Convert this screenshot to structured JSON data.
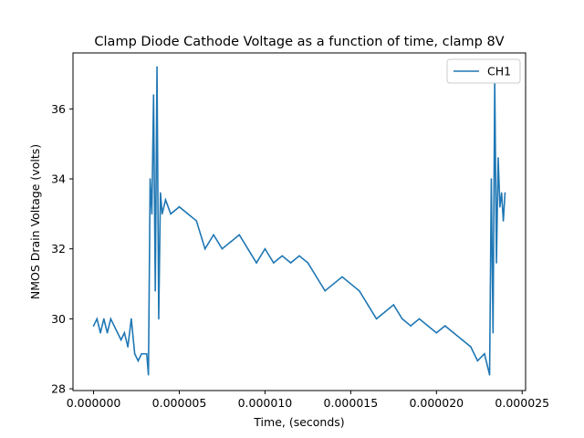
{
  "chart_data": {
    "type": "line",
    "title": "Clamp Diode Cathode Voltage as a function of time, clamp 8V",
    "xlabel": "Time, (seconds)",
    "ylabel": "NMOS Drain Voltage (volts)",
    "xlim": [
      -1.2e-06,
      2.52e-05
    ],
    "ylim": [
      27.95,
      37.6
    ],
    "x_ticks": [
      {
        "value": 0.0,
        "label": "0.000000"
      },
      {
        "value": 5e-06,
        "label": "0.000005"
      },
      {
        "value": 1e-05,
        "label": "0.000010"
      },
      {
        "value": 1.5e-05,
        "label": "0.000015"
      },
      {
        "value": 2e-05,
        "label": "0.000020"
      },
      {
        "value": 2.5e-05,
        "label": "0.000025"
      }
    ],
    "y_ticks": [
      {
        "value": 28,
        "label": "28"
      },
      {
        "value": 30,
        "label": "30"
      },
      {
        "value": 32,
        "label": "32"
      },
      {
        "value": 34,
        "label": "34"
      },
      {
        "value": 36,
        "label": "36"
      }
    ],
    "grid": false,
    "legend": {
      "position": "top-right"
    },
    "series": [
      {
        "name": "CH1",
        "color": "#1f77b4",
        "x": [
          0.0,
          2e-07,
          4e-07,
          6e-07,
          8e-07,
          1e-06,
          1.2e-06,
          1.4e-06,
          1.6e-06,
          1.8e-06,
          2e-06,
          2.2e-06,
          2.4e-06,
          2.6e-06,
          2.8e-06,
          3e-06,
          3.1e-06,
          3.2e-06,
          3.3e-06,
          3.4e-06,
          3.5e-06,
          3.6e-06,
          3.7e-06,
          3.8e-06,
          3.9e-06,
          4e-06,
          4.2e-06,
          4.5e-06,
          5e-06,
          5.5e-06,
          6e-06,
          6.5e-06,
          7e-06,
          7.5e-06,
          8e-06,
          8.5e-06,
          9e-06,
          9.5e-06,
          1e-05,
          1.05e-05,
          1.1e-05,
          1.15e-05,
          1.2e-05,
          1.25e-05,
          1.3e-05,
          1.35e-05,
          1.4e-05,
          1.45e-05,
          1.5e-05,
          1.55e-05,
          1.6e-05,
          1.65e-05,
          1.7e-05,
          1.75e-05,
          1.8e-05,
          1.85e-05,
          1.9e-05,
          1.95e-05,
          2e-05,
          2.05e-05,
          2.1e-05,
          2.15e-05,
          2.2e-05,
          2.24e-05,
          2.28e-05,
          2.31e-05,
          2.32e-05,
          2.33e-05,
          2.34e-05,
          2.35e-05,
          2.36e-05,
          2.37e-05,
          2.38e-05,
          2.39e-05,
          2.4e-05
        ],
        "y": [
          29.8,
          30.0,
          29.6,
          30.0,
          29.6,
          30.0,
          29.8,
          29.6,
          29.4,
          29.6,
          29.2,
          30.0,
          29.0,
          28.8,
          29.0,
          29.0,
          29.0,
          28.4,
          34.0,
          33.0,
          36.4,
          30.8,
          37.2,
          30.0,
          33.6,
          33.0,
          33.4,
          33.0,
          33.2,
          33.0,
          32.8,
          32.0,
          32.4,
          32.0,
          32.2,
          32.4,
          32.0,
          31.6,
          32.0,
          31.6,
          31.8,
          31.6,
          31.8,
          31.6,
          31.2,
          30.8,
          31.0,
          31.2,
          31.0,
          30.8,
          30.4,
          30.0,
          30.2,
          30.4,
          30.0,
          29.8,
          30.0,
          29.8,
          29.6,
          29.8,
          29.6,
          29.4,
          29.2,
          28.8,
          29.0,
          28.4,
          34.0,
          29.6,
          36.8,
          31.6,
          34.6,
          33.2,
          33.6,
          32.8,
          33.6
        ]
      }
    ]
  }
}
